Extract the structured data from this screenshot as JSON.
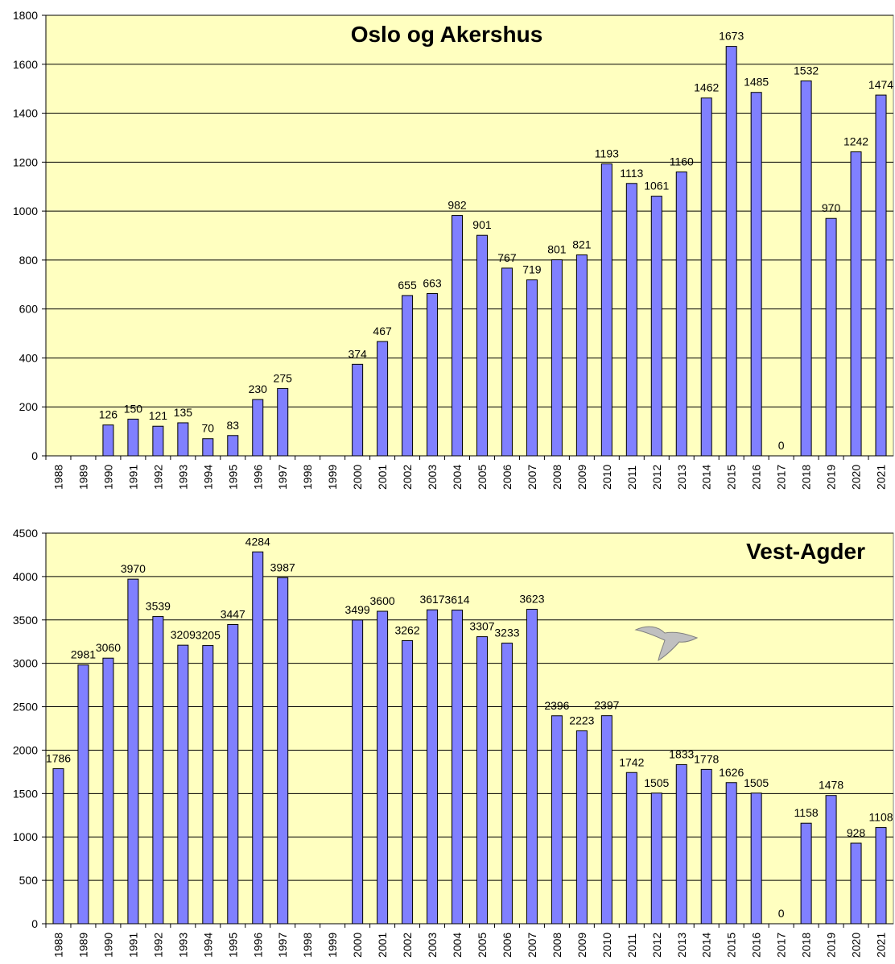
{
  "chart_data": [
    {
      "type": "bar",
      "title": "Oslo og Akershus",
      "categories": [
        "1988",
        "1989",
        "1990",
        "1991",
        "1992",
        "1993",
        "1994",
        "1995",
        "1996",
        "1997",
        "1998",
        "1999",
        "2000",
        "2001",
        "2002",
        "2003",
        "2004",
        "2005",
        "2006",
        "2007",
        "2008",
        "2009",
        "2010",
        "2011",
        "2012",
        "2013",
        "2014",
        "2015",
        "2016",
        "2017",
        "2018",
        "2019",
        "2020",
        "2021"
      ],
      "values": [
        null,
        null,
        126,
        150,
        121,
        135,
        70,
        83,
        230,
        275,
        null,
        null,
        374,
        467,
        655,
        663,
        982,
        901,
        767,
        719,
        801,
        821,
        1193,
        1113,
        1061,
        1160,
        1462,
        1673,
        1485,
        0,
        1532,
        970,
        1242,
        1474
      ],
      "color": "#8080ff",
      "ylim": [
        0,
        1800
      ],
      "yticks": [
        0,
        200,
        400,
        600,
        800,
        1000,
        1200,
        1400,
        1600,
        1800
      ],
      "grid": true
    },
    {
      "type": "bar",
      "title": "Vest-Agder",
      "categories": [
        "1988",
        "1989",
        "1990",
        "1991",
        "1992",
        "1993",
        "1994",
        "1995",
        "1996",
        "1997",
        "1998",
        "1999",
        "2000",
        "2001",
        "2002",
        "2003",
        "2004",
        "2005",
        "2006",
        "2007",
        "2008",
        "2009",
        "2010",
        "2011",
        "2012",
        "2013",
        "2014",
        "2015",
        "2016",
        "2017",
        "2018",
        "2019",
        "2020",
        "2021"
      ],
      "values": [
        1786,
        2981,
        3060,
        3970,
        3539,
        3209,
        3205,
        3447,
        4284,
        3987,
        null,
        null,
        3499,
        3600,
        3262,
        3617,
        3614,
        3307,
        3233,
        3623,
        2396,
        2223,
        2397,
        1742,
        1505,
        1833,
        1778,
        1626,
        1505,
        0,
        1158,
        1478,
        928,
        1108
      ],
      "color": "#8080ff",
      "ylim": [
        0,
        4500
      ],
      "yticks": [
        0,
        500,
        1000,
        1500,
        2000,
        2500,
        3000,
        3500,
        4000,
        4500
      ],
      "grid": true
    }
  ]
}
